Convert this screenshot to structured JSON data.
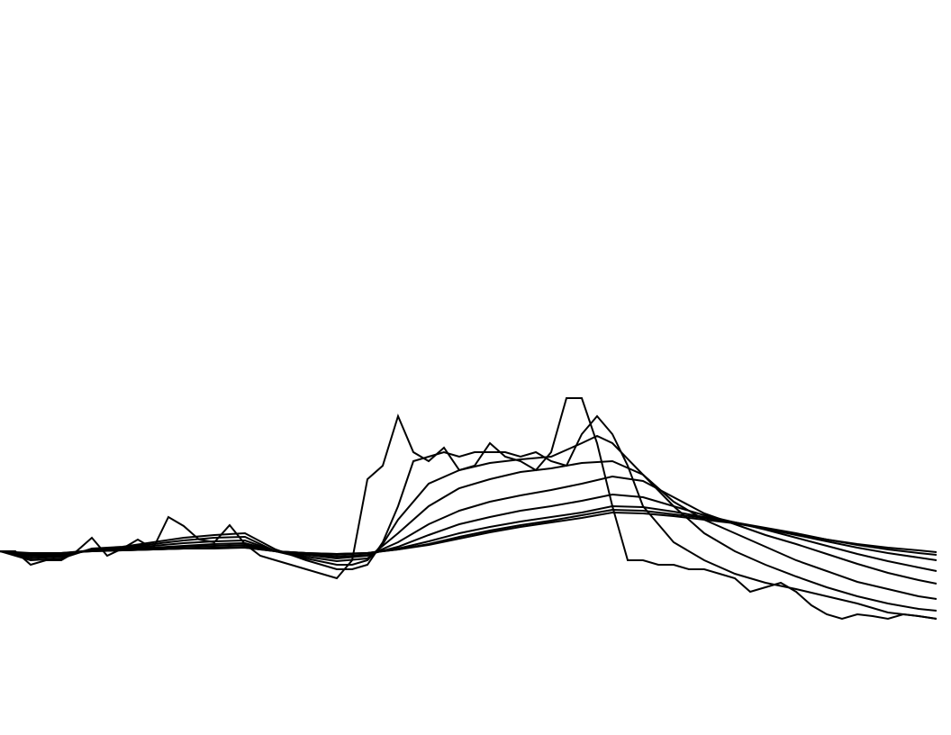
{
  "chart_data": {
    "type": "line",
    "title": "",
    "xlabel": "",
    "ylabel": "",
    "grid": false,
    "axes_visible": false,
    "legend": "none",
    "line_color": "#000000",
    "background_color": "#ffffff",
    "xlim": [
      0,
      1040
    ],
    "ylim": [
      -100,
      200
    ],
    "series": [
      {
        "x": [
          0,
          17,
          34,
          51,
          68,
          85,
          102,
          119,
          136,
          153,
          170,
          187,
          204,
          221,
          238,
          255,
          272,
          289,
          306,
          323,
          340,
          357,
          374,
          391,
          408,
          425,
          442,
          459,
          476,
          493,
          510,
          527,
          544,
          561,
          578,
          595,
          612,
          629,
          646,
          663,
          680,
          697,
          714,
          731,
          748,
          765,
          782,
          799,
          816,
          833,
          850,
          867,
          884,
          901,
          918,
          935,
          952,
          969,
          986,
          1003,
          1020,
          1040
        ],
        "y": [
          0,
          0,
          -15,
          -10,
          -10,
          0,
          15,
          -5,
          3,
          13,
          3,
          38,
          28,
          13,
          10,
          29,
          8,
          -5,
          -10,
          -15,
          -20,
          -25,
          -30,
          -10,
          80,
          95,
          150,
          110,
          100,
          115,
          90,
          95,
          120,
          105,
          100,
          90,
          110,
          170,
          170,
          120,
          50,
          -10,
          -10,
          -15,
          -15,
          -20,
          -20,
          -25,
          -30,
          -45,
          -40,
          -35,
          -45,
          -60,
          -70,
          -75,
          -70,
          -72,
          -75,
          -70,
          -72,
          -75
        ]
      },
      {
        "x": [
          0,
          34,
          68,
          102,
          136,
          170,
          204,
          238,
          272,
          306,
          340,
          374,
          391,
          408,
          425,
          442,
          459,
          476,
          493,
          510,
          527,
          544,
          561,
          578,
          595,
          612,
          629,
          646,
          663,
          680,
          697,
          714,
          748,
          782,
          816,
          850,
          884,
          918,
          952,
          986,
          1020,
          1040
        ],
        "y": [
          0,
          -10,
          -8,
          3,
          5,
          10,
          15,
          18,
          20,
          2,
          -10,
          -20,
          -20,
          -15,
          10,
          50,
          100,
          105,
          110,
          105,
          110,
          110,
          110,
          105,
          110,
          100,
          95,
          130,
          150,
          130,
          95,
          50,
          10,
          -10,
          -25,
          -35,
          -42,
          -50,
          -58,
          -68,
          -72,
          -75
        ]
      },
      {
        "x": [
          0,
          34,
          68,
          102,
          136,
          170,
          204,
          238,
          272,
          306,
          340,
          374,
          391,
          408,
          425,
          442,
          476,
          510,
          544,
          578,
          612,
          646,
          663,
          680,
          714,
          748,
          782,
          816,
          850,
          884,
          918,
          952,
          986,
          1020,
          1040
        ],
        "y": [
          0,
          -8,
          -6,
          2,
          4,
          8,
          12,
          15,
          16,
          0,
          -8,
          -15,
          -15,
          -10,
          8,
          35,
          75,
          90,
          98,
          102,
          105,
          120,
          128,
          120,
          85,
          50,
          20,
          0,
          -15,
          -28,
          -40,
          -50,
          -58,
          -64,
          -66
        ]
      },
      {
        "x": [
          0,
          34,
          68,
          102,
          136,
          170,
          204,
          238,
          272,
          306,
          340,
          374,
          408,
          442,
          476,
          510,
          544,
          578,
          612,
          646,
          680,
          714,
          748,
          782,
          816,
          850,
          884,
          918,
          952,
          986,
          1020,
          1040
        ],
        "y": [
          0,
          -6,
          -5,
          2,
          3,
          6,
          9,
          11,
          12,
          0,
          -6,
          -11,
          -8,
          20,
          50,
          70,
          80,
          88,
          92,
          98,
          100,
          85,
          55,
          35,
          20,
          5,
          -10,
          -22,
          -34,
          -42,
          -50,
          -53
        ]
      },
      {
        "x": [
          0,
          34,
          68,
          102,
          136,
          170,
          204,
          238,
          272,
          306,
          340,
          374,
          408,
          442,
          476,
          510,
          544,
          578,
          612,
          646,
          680,
          714,
          748,
          782,
          816,
          850,
          884,
          918,
          952,
          986,
          1020,
          1040
        ],
        "y": [
          0,
          -5,
          -4,
          1,
          2,
          4,
          6,
          8,
          9,
          0,
          -4,
          -8,
          -5,
          10,
          30,
          45,
          55,
          62,
          68,
          75,
          83,
          78,
          60,
          42,
          30,
          18,
          8,
          -3,
          -14,
          -24,
          -32,
          -36
        ]
      },
      {
        "x": [
          0,
          34,
          68,
          102,
          136,
          170,
          204,
          238,
          272,
          306,
          340,
          374,
          408,
          442,
          476,
          510,
          544,
          578,
          612,
          646,
          680,
          714,
          748,
          782,
          816,
          850,
          884,
          918,
          952,
          986,
          1020,
          1040
        ],
        "y": [
          0,
          -4,
          -3,
          1,
          2,
          3,
          5,
          6,
          7,
          0,
          -3,
          -6,
          -4,
          5,
          18,
          30,
          38,
          45,
          50,
          56,
          63,
          60,
          50,
          40,
          32,
          24,
          15,
          6,
          -3,
          -11,
          -18,
          -22
        ]
      },
      {
        "x": [
          0,
          34,
          68,
          102,
          136,
          170,
          204,
          238,
          272,
          306,
          340,
          374,
          408,
          442,
          476,
          510,
          544,
          578,
          612,
          646,
          680,
          714,
          748,
          782,
          816,
          850,
          884,
          918,
          952,
          986,
          1020,
          1040
        ],
        "y": [
          0,
          -3,
          -2,
          1,
          1,
          2,
          3,
          4,
          5,
          0,
          -2,
          -4,
          -2,
          3,
          11,
          20,
          27,
          33,
          38,
          43,
          50,
          49,
          44,
          38,
          32,
          25,
          18,
          11,
          4,
          -2,
          -7,
          -10
        ]
      },
      {
        "x": [
          0,
          34,
          68,
          102,
          136,
          170,
          204,
          238,
          272,
          306,
          340,
          374,
          408,
          442,
          476,
          510,
          544,
          578,
          612,
          646,
          680,
          714,
          748,
          782,
          816,
          850,
          884,
          918,
          952,
          986,
          1020,
          1040
        ],
        "y": [
          0,
          -3,
          -2,
          0,
          1,
          2,
          3,
          4,
          4,
          0,
          -2,
          -3,
          -2,
          2,
          8,
          16,
          23,
          29,
          34,
          40,
          46,
          45,
          41,
          37,
          32,
          26,
          20,
          13,
          7,
          2,
          -2,
          -4
        ]
      },
      {
        "x": [
          0,
          34,
          68,
          102,
          136,
          170,
          204,
          238,
          272,
          306,
          340,
          374,
          408,
          442,
          476,
          510,
          544,
          578,
          612,
          646,
          680,
          714,
          748,
          782,
          816,
          850,
          884,
          918,
          952,
          986,
          1020,
          1040
        ],
        "y": [
          0,
          -2,
          -2,
          0,
          1,
          2,
          3,
          3,
          4,
          0,
          -2,
          -3,
          -2,
          2,
          7,
          14,
          21,
          27,
          32,
          37,
          43,
          42,
          39,
          35,
          31,
          25,
          19,
          13,
          8,
          4,
          1,
          -1
        ]
      }
    ]
  }
}
